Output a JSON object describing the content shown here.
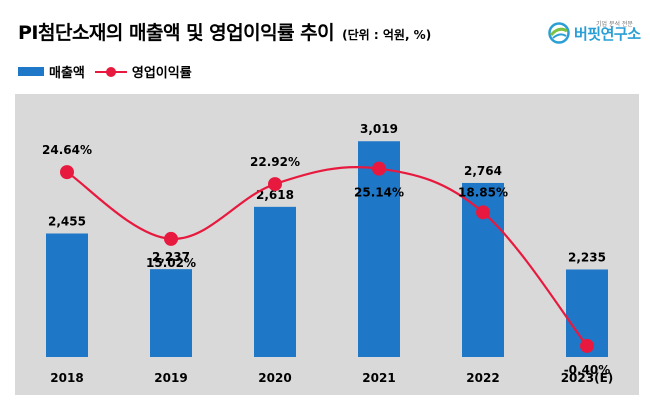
{
  "header": {
    "title": "PI첨단소재의 매출액 및 영업이익률 추이",
    "unit": "(단위 : 억원, %)"
  },
  "brand": {
    "name": "버핏연구소",
    "tagline": "기업 분석 전문"
  },
  "colors": {
    "bar": "#1f77c8",
    "line": "#e8193e",
    "plot_bg": "#d9d9d9"
  },
  "chart_data": {
    "type": "bar",
    "categories": [
      "2018",
      "2019",
      "2020",
      "2021",
      "2022",
      "2023(E)"
    ],
    "series": [
      {
        "name": "매출액",
        "type": "bar",
        "values": [
          2455,
          2237,
          2618,
          3019,
          2764,
          2235
        ],
        "labels": [
          "2,455",
          "2,237",
          "2,618",
          "3,019",
          "2,764",
          "2,235"
        ]
      },
      {
        "name": "영업이익률",
        "type": "line",
        "values": [
          24.64,
          15.02,
          22.92,
          25.14,
          18.85,
          -0.4
        ],
        "labels": [
          "24.64%",
          "15.02%",
          "22.92%",
          "25.14%",
          "18.85%",
          "-0.40%"
        ]
      }
    ],
    "bar_ylim": [
      1700,
      3100
    ],
    "line_ylim": [
      -2,
      31
    ],
    "legend_position": "top-left",
    "grid": false
  }
}
